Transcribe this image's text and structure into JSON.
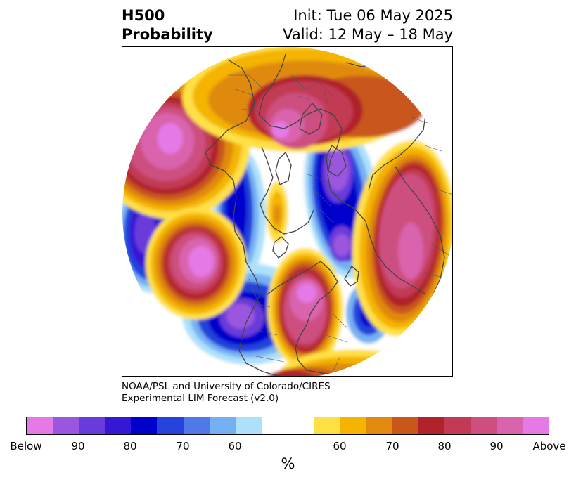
{
  "header": {
    "variable": "H500",
    "product": "Probability",
    "init": "Init: Tue 06 May 2025",
    "valid": "Valid: 12 May – 18 May"
  },
  "credit": {
    "line1": "NOAA/PSL and University of Colorado/CIRES",
    "line2": "Experimental LIM Forecast (v2.0)"
  },
  "colorbar": {
    "colors": [
      "#e57ae6",
      "#9a56de",
      "#6a3bdb",
      "#3518d4",
      "#0000cc",
      "#2443dc",
      "#4f78e8",
      "#74b0f2",
      "#ade0fb",
      "#ffffff",
      "#ffe044",
      "#f4b400",
      "#e08a10",
      "#c9571a",
      "#b0232a",
      "#c23a55",
      "#cd4f80",
      "#d964ad",
      "#e57ae6"
    ],
    "tick_labels": [
      "Below",
      "90",
      "80",
      "70",
      "60",
      "60",
      "70",
      "80",
      "90",
      "Above"
    ],
    "units": "%"
  }
}
